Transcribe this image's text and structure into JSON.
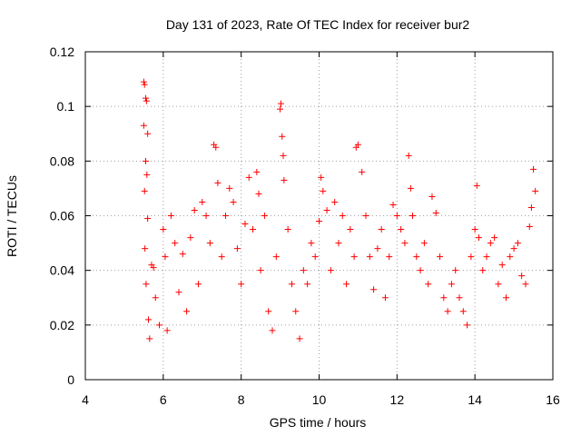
{
  "chart_data": {
    "type": "scatter",
    "title": "Day 131 of 2023, Rate Of TEC Index for receiver bur2",
    "xlabel": "GPS time / hours",
    "ylabel": "ROTI / TECUs",
    "xlim": [
      4,
      16
    ],
    "ylim": [
      0,
      0.12
    ],
    "x_ticks": [
      4,
      6,
      8,
      10,
      12,
      14,
      16
    ],
    "x_tick_labels": [
      "4",
      "6",
      "8",
      "10",
      "12",
      "14",
      "16"
    ],
    "y_ticks": [
      0,
      0.02,
      0.04,
      0.06,
      0.08,
      0.1,
      0.12
    ],
    "y_tick_labels": [
      "0",
      "0.02",
      "0.04",
      "0.06",
      "0.08",
      "0.1",
      "0.12"
    ],
    "grid": true,
    "marker": "plus",
    "color": "#ff0000",
    "series": [
      {
        "x": [
          5.5,
          5.52,
          5.55,
          5.57,
          5.5,
          5.6,
          5.55,
          5.58,
          5.52,
          5.6,
          5.53,
          5.56,
          5.62,
          5.65,
          5.7,
          5.75,
          5.8,
          5.9,
          6.0,
          6.05,
          6.1,
          6.2,
          6.3,
          6.4,
          6.5,
          6.6,
          6.7,
          6.8,
          6.9,
          7.0,
          7.1,
          7.2,
          7.3,
          7.35,
          7.4,
          7.5,
          7.6,
          7.7,
          7.8,
          7.9,
          8.0,
          8.1,
          8.2,
          8.3,
          8.4,
          8.45,
          8.5,
          8.6,
          8.7,
          8.8,
          8.9,
          9.0,
          9.02,
          9.05,
          9.08,
          9.1,
          9.2,
          9.3,
          9.4,
          9.5,
          9.6,
          9.7,
          9.8,
          9.9,
          10.0,
          10.05,
          10.1,
          10.2,
          10.3,
          10.4,
          10.5,
          10.6,
          10.7,
          10.8,
          10.9,
          10.95,
          11.0,
          11.1,
          11.2,
          11.3,
          11.4,
          11.5,
          11.6,
          11.7,
          11.8,
          11.9,
          12.0,
          12.1,
          12.2,
          12.3,
          12.35,
          12.4,
          12.5,
          12.6,
          12.7,
          12.8,
          12.9,
          13.0,
          13.1,
          13.2,
          13.3,
          13.4,
          13.5,
          13.6,
          13.7,
          13.8,
          13.9,
          14.0,
          14.05,
          14.1,
          14.2,
          14.3,
          14.4,
          14.5,
          14.6,
          14.7,
          14.8,
          14.9,
          15.0,
          15.1,
          15.2,
          15.3,
          15.4,
          15.45,
          15.5,
          15.55
        ],
        "y": [
          0.109,
          0.108,
          0.103,
          0.102,
          0.093,
          0.09,
          0.08,
          0.075,
          0.069,
          0.059,
          0.048,
          0.035,
          0.022,
          0.015,
          0.042,
          0.041,
          0.03,
          0.02,
          0.055,
          0.045,
          0.018,
          0.06,
          0.05,
          0.032,
          0.046,
          0.025,
          0.052,
          0.062,
          0.035,
          0.065,
          0.06,
          0.05,
          0.086,
          0.085,
          0.072,
          0.045,
          0.06,
          0.07,
          0.065,
          0.048,
          0.035,
          0.057,
          0.074,
          0.055,
          0.076,
          0.068,
          0.04,
          0.06,
          0.025,
          0.018,
          0.045,
          0.099,
          0.101,
          0.089,
          0.082,
          0.073,
          0.055,
          0.035,
          0.025,
          0.015,
          0.04,
          0.035,
          0.05,
          0.045,
          0.058,
          0.074,
          0.069,
          0.062,
          0.04,
          0.065,
          0.05,
          0.06,
          0.035,
          0.055,
          0.045,
          0.085,
          0.086,
          0.076,
          0.06,
          0.045,
          0.033,
          0.048,
          0.055,
          0.03,
          0.045,
          0.064,
          0.06,
          0.055,
          0.05,
          0.082,
          0.07,
          0.06,
          0.045,
          0.04,
          0.05,
          0.035,
          0.067,
          0.061,
          0.045,
          0.03,
          0.025,
          0.035,
          0.04,
          0.03,
          0.025,
          0.02,
          0.045,
          0.055,
          0.071,
          0.052,
          0.04,
          0.045,
          0.05,
          0.052,
          0.035,
          0.042,
          0.03,
          0.045,
          0.048,
          0.05,
          0.038,
          0.035,
          0.056,
          0.063,
          0.077,
          0.069
        ]
      }
    ]
  }
}
